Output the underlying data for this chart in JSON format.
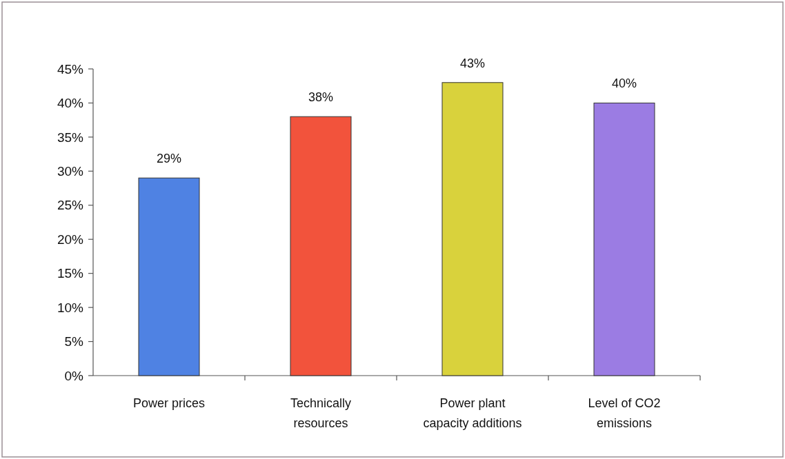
{
  "chart_data": {
    "type": "bar",
    "categories": [
      "Power prices",
      "Technically resources",
      "Power plant capacity additions",
      "Level of CO2 emissions"
    ],
    "values": [
      29,
      38,
      43,
      40
    ],
    "colors": [
      "#4f82e3",
      "#f2533c",
      "#d9d23c",
      "#9b7ce3"
    ],
    "value_labels": [
      "29%",
      "38%",
      "43%",
      "40%"
    ],
    "ylim": [
      0,
      45
    ],
    "yticks": [
      {
        "value": 0,
        "label": "0%"
      },
      {
        "value": 5,
        "label": "5%"
      },
      {
        "value": 10,
        "label": "10%"
      },
      {
        "value": 15,
        "label": "15%"
      },
      {
        "value": 20,
        "label": "20%"
      },
      {
        "value": 25,
        "label": "25%"
      },
      {
        "value": 30,
        "label": "30%"
      },
      {
        "value": 35,
        "label": "35%"
      },
      {
        "value": 40,
        "label": "40%"
      },
      {
        "value": 45,
        "label": "45%"
      }
    ]
  }
}
